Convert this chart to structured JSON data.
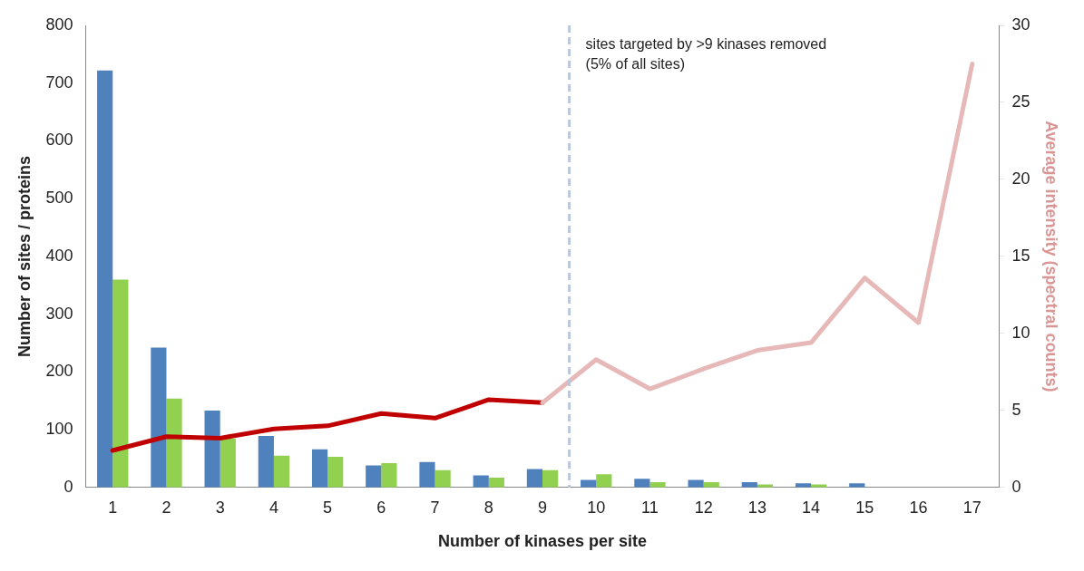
{
  "chart_data": {
    "type": "bar",
    "x": [
      1,
      2,
      3,
      4,
      5,
      6,
      7,
      8,
      9,
      10,
      11,
      12,
      13,
      14,
      15,
      16,
      17
    ],
    "xlim": [
      0.5,
      17.5
    ],
    "xticks": [
      1,
      2,
      3,
      4,
      5,
      6,
      7,
      8,
      9,
      10,
      11,
      12,
      13,
      14,
      15,
      16,
      17
    ],
    "xlabel": "Number of kinases per site",
    "ylabel": "Number of sites / proteins",
    "y2label": "Average intensity (spectral counts)",
    "ylim": [
      0,
      800
    ],
    "yticks": [
      0,
      100,
      200,
      300,
      400,
      500,
      600,
      700,
      800
    ],
    "y2lim": [
      0,
      30
    ],
    "y2ticks": [
      0,
      5,
      10,
      15,
      20,
      25,
      30
    ],
    "series": [
      {
        "color": "#4f81bd",
        "values": [
          722,
          242,
          133,
          89,
          66,
          38,
          44,
          21,
          32,
          13,
          15,
          13,
          9,
          7,
          7,
          0,
          0
        ]
      },
      {
        "color": "#92d050",
        "values": [
          360,
          154,
          85,
          55,
          53,
          42,
          30,
          17,
          30,
          23,
          9,
          9,
          5,
          5,
          0,
          0,
          0
        ]
      },
      {
        "type": "line",
        "axis": "y2",
        "color": "#c00000",
        "x": [
          1,
          2,
          3,
          4,
          5,
          6,
          7,
          8,
          9
        ],
        "values": [
          2.4,
          3.3,
          3.2,
          3.8,
          4.0,
          4.8,
          4.5,
          5.7,
          5.5
        ]
      },
      {
        "type": "line",
        "axis": "y2",
        "color": "#e6b9b8",
        "x": [
          9,
          10,
          11,
          12,
          13,
          14,
          15,
          16,
          17
        ],
        "values": [
          5.5,
          8.3,
          6.4,
          7.7,
          8.9,
          9.4,
          13.6,
          10.7,
          27.5
        ]
      }
    ],
    "ref_lines": [
      {
        "axis": "x",
        "value": 9.5,
        "color": "#b9c7db",
        "line_style": "dashed",
        "label": "sites targeted by >9 kinases removed (5% of all sites)"
      }
    ],
    "grid": false,
    "legend": false,
    "marker": "none"
  }
}
